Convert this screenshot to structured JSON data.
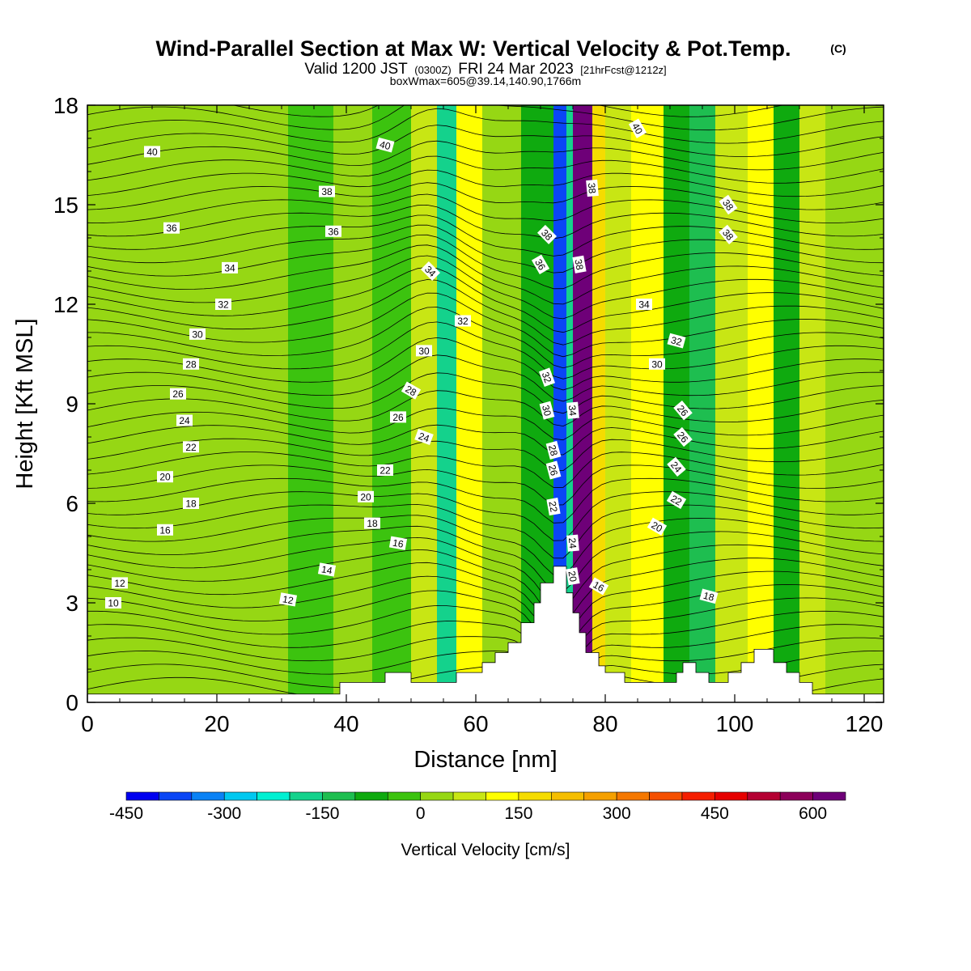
{
  "header": {
    "title": "Wind-Parallel Section at Max W: Vertical Velocity & Pot.Temp.",
    "title_mark": "(C)",
    "valid_prefix": "Valid 1200 JST",
    "valid_utc": "(0300Z)",
    "valid_date": "FRI 24 Mar 2023",
    "forecast": "[21hrFcst@1212z]",
    "box_info": "boxWmax=605@39.14,140.90,1766m"
  },
  "chart_data": {
    "type": "heatmap",
    "xlabel": "Distance [nm]",
    "ylabel": "Height [Kft MSL]",
    "xlim": [
      0,
      123
    ],
    "ylim": [
      0,
      18
    ],
    "xticks": [
      0,
      20,
      40,
      60,
      80,
      100,
      120
    ],
    "yticks": [
      0,
      3,
      6,
      9,
      12,
      15,
      18
    ],
    "colorbar": {
      "title": "Vertical Velocity [cm/s]",
      "min": -450,
      "max": 650,
      "step": 50,
      "tick_labels": [
        "-450",
        "-300",
        "-150",
        "0",
        "150",
        "300",
        "450",
        "600"
      ],
      "colors": [
        "#0000f0",
        "#0a46f5",
        "#0a82f5",
        "#00c8f0",
        "#00f0d2",
        "#14d28c",
        "#1ebe50",
        "#0faa0f",
        "#3cc30f",
        "#96d714",
        "#c8e614",
        "#ffff00",
        "#f5dc00",
        "#f5be00",
        "#f5a000",
        "#f57800",
        "#f55000",
        "#f51e00",
        "#e60000",
        "#b40032",
        "#8c005a",
        "#6e0078"
      ]
    },
    "terrain_nm_kft": [
      [
        0,
        0.25
      ],
      [
        39,
        0.25
      ],
      [
        39,
        0.6
      ],
      [
        46,
        0.6
      ],
      [
        46,
        0.9
      ],
      [
        50,
        0.9
      ],
      [
        50,
        0.6
      ],
      [
        57,
        0.6
      ],
      [
        57,
        0.9
      ],
      [
        61,
        0.9
      ],
      [
        61,
        1.2
      ],
      [
        63,
        1.2
      ],
      [
        63,
        1.5
      ],
      [
        65,
        1.5
      ],
      [
        65,
        1.8
      ],
      [
        67,
        1.8
      ],
      [
        67,
        2.4
      ],
      [
        69,
        2.4
      ],
      [
        69,
        3.0
      ],
      [
        70,
        3.0
      ],
      [
        70,
        3.6
      ],
      [
        72,
        3.6
      ],
      [
        72,
        4.1
      ],
      [
        74,
        4.1
      ],
      [
        74,
        3.3
      ],
      [
        75,
        3.3
      ],
      [
        75,
        2.7
      ],
      [
        76,
        2.7
      ],
      [
        76,
        2.1
      ],
      [
        77,
        2.1
      ],
      [
        77,
        1.5
      ],
      [
        79,
        1.5
      ],
      [
        79,
        1.1
      ],
      [
        80,
        1.1
      ],
      [
        80,
        0.9
      ],
      [
        83,
        0.9
      ],
      [
        83,
        0.6
      ],
      [
        91,
        0.6
      ],
      [
        91,
        0.9
      ],
      [
        92,
        0.9
      ],
      [
        92,
        1.2
      ],
      [
        94,
        1.2
      ],
      [
        94,
        0.9
      ],
      [
        96,
        0.9
      ],
      [
        96,
        0.6
      ],
      [
        99,
        0.6
      ],
      [
        99,
        0.9
      ],
      [
        101,
        0.9
      ],
      [
        101,
        1.2
      ],
      [
        103,
        1.2
      ],
      [
        103,
        1.6
      ],
      [
        106,
        1.6
      ],
      [
        106,
        1.2
      ],
      [
        108,
        1.2
      ],
      [
        108,
        0.9
      ],
      [
        110,
        0.9
      ],
      [
        110,
        0.6
      ],
      [
        112,
        0.6
      ],
      [
        112,
        0.25
      ],
      [
        123,
        0.25
      ]
    ],
    "w_bands_cm_s": [
      {
        "x": [
          0,
          31
        ],
        "w": 30
      },
      {
        "x": [
          31,
          38
        ],
        "w": -20
      },
      {
        "x": [
          38,
          44
        ],
        "w": 40
      },
      {
        "x": [
          44,
          50
        ],
        "w": -40
      },
      {
        "x": [
          50,
          54
        ],
        "w": 90
      },
      {
        "x": [
          54,
          57
        ],
        "w": -160
      },
      {
        "x": [
          57,
          61
        ],
        "w": 110
      },
      {
        "x": [
          61,
          67
        ],
        "w": 40
      },
      {
        "x": [
          67,
          72
        ],
        "w": -70
      },
      {
        "x": [
          72,
          74
        ],
        "w": -400
      },
      {
        "x": [
          74,
          75
        ],
        "w": -200
      },
      {
        "x": [
          75,
          78
        ],
        "w": 600
      },
      {
        "x": [
          78,
          80
        ],
        "w": 180
      },
      {
        "x": [
          80,
          84
        ],
        "w": 60
      },
      {
        "x": [
          84,
          89
        ],
        "w": 110
      },
      {
        "x": [
          89,
          93
        ],
        "w": -60
      },
      {
        "x": [
          93,
          97
        ],
        "w": -120
      },
      {
        "x": [
          97,
          102
        ],
        "w": 60
      },
      {
        "x": [
          102,
          106
        ],
        "w": 130
      },
      {
        "x": [
          106,
          110
        ],
        "w": -70
      },
      {
        "x": [
          110,
          114
        ],
        "w": 50
      },
      {
        "x": [
          114,
          123
        ],
        "w": 10
      }
    ],
    "contour_labels": [
      {
        "x": 10,
        "y": 16.6,
        "text": "40",
        "rot": 0
      },
      {
        "x": 46,
        "y": 16.8,
        "text": "40",
        "rot": 15
      },
      {
        "x": 85,
        "y": 17.3,
        "text": "40",
        "rot": 60
      },
      {
        "x": 37,
        "y": 15.4,
        "text": "38",
        "rot": 0
      },
      {
        "x": 78,
        "y": 15.5,
        "text": "38",
        "rot": 85
      },
      {
        "x": 99,
        "y": 15.0,
        "text": "38",
        "rot": 55
      },
      {
        "x": 71,
        "y": 14.1,
        "text": "38",
        "rot": 45
      },
      {
        "x": 99,
        "y": 14.1,
        "text": "38",
        "rot": 50
      },
      {
        "x": 13,
        "y": 14.3,
        "text": "36",
        "rot": 0
      },
      {
        "x": 38,
        "y": 14.2,
        "text": "36",
        "rot": 0
      },
      {
        "x": 70,
        "y": 13.2,
        "text": "36",
        "rot": 60
      },
      {
        "x": 76,
        "y": 13.2,
        "text": "38",
        "rot": 80
      },
      {
        "x": 22,
        "y": 13.1,
        "text": "34",
        "rot": 0
      },
      {
        "x": 53,
        "y": 13.0,
        "text": "34",
        "rot": 45
      },
      {
        "x": 86,
        "y": 12.0,
        "text": "34",
        "rot": 0
      },
      {
        "x": 21,
        "y": 12.0,
        "text": "32",
        "rot": 0
      },
      {
        "x": 58,
        "y": 11.5,
        "text": "32",
        "rot": 0
      },
      {
        "x": 91,
        "y": 10.9,
        "text": "32",
        "rot": 15
      },
      {
        "x": 17,
        "y": 11.1,
        "text": "30",
        "rot": 0
      },
      {
        "x": 52,
        "y": 10.6,
        "text": "30",
        "rot": 0
      },
      {
        "x": 88,
        "y": 10.2,
        "text": "30",
        "rot": 0
      },
      {
        "x": 71,
        "y": 9.8,
        "text": "32",
        "rot": 70
      },
      {
        "x": 16,
        "y": 10.2,
        "text": "28",
        "rot": 0
      },
      {
        "x": 50,
        "y": 9.4,
        "text": "28",
        "rot": 30
      },
      {
        "x": 71,
        "y": 8.8,
        "text": "30",
        "rot": 75
      },
      {
        "x": 75,
        "y": 8.8,
        "text": "34",
        "rot": 85
      },
      {
        "x": 92,
        "y": 8.8,
        "text": "26",
        "rot": 50
      },
      {
        "x": 14,
        "y": 9.3,
        "text": "26",
        "rot": 0
      },
      {
        "x": 48,
        "y": 8.6,
        "text": "26",
        "rot": 0
      },
      {
        "x": 15,
        "y": 8.5,
        "text": "24",
        "rot": 0
      },
      {
        "x": 52,
        "y": 8.0,
        "text": "24",
        "rot": 20
      },
      {
        "x": 72,
        "y": 7.6,
        "text": "28",
        "rot": 75
      },
      {
        "x": 92,
        "y": 8.0,
        "text": "26",
        "rot": 50
      },
      {
        "x": 16,
        "y": 7.7,
        "text": "22",
        "rot": 0
      },
      {
        "x": 46,
        "y": 7.0,
        "text": "22",
        "rot": 0
      },
      {
        "x": 72,
        "y": 7.0,
        "text": "26",
        "rot": 75
      },
      {
        "x": 91,
        "y": 7.1,
        "text": "24",
        "rot": 50
      },
      {
        "x": 12,
        "y": 6.8,
        "text": "20",
        "rot": 0
      },
      {
        "x": 43,
        "y": 6.2,
        "text": "20",
        "rot": 0
      },
      {
        "x": 72,
        "y": 5.9,
        "text": "22",
        "rot": 80
      },
      {
        "x": 91,
        "y": 6.1,
        "text": "22",
        "rot": 30
      },
      {
        "x": 16,
        "y": 6.0,
        "text": "18",
        "rot": 0
      },
      {
        "x": 44,
        "y": 5.4,
        "text": "18",
        "rot": 0
      },
      {
        "x": 88,
        "y": 5.3,
        "text": "20",
        "rot": 30
      },
      {
        "x": 12,
        "y": 5.2,
        "text": "16",
        "rot": 0
      },
      {
        "x": 48,
        "y": 4.8,
        "text": "16",
        "rot": 10
      },
      {
        "x": 75,
        "y": 4.8,
        "text": "24",
        "rot": 85
      },
      {
        "x": 5,
        "y": 3.6,
        "text": "12",
        "rot": 0
      },
      {
        "x": 37,
        "y": 4.0,
        "text": "14",
        "rot": 10
      },
      {
        "x": 75,
        "y": 3.8,
        "text": "20",
        "rot": 80
      },
      {
        "x": 79,
        "y": 3.5,
        "text": "16",
        "rot": 30
      },
      {
        "x": 4,
        "y": 3.0,
        "text": "10",
        "rot": 0
      },
      {
        "x": 31,
        "y": 3.1,
        "text": "12",
        "rot": 10
      },
      {
        "x": 96,
        "y": 3.2,
        "text": "18",
        "rot": 15
      }
    ]
  }
}
